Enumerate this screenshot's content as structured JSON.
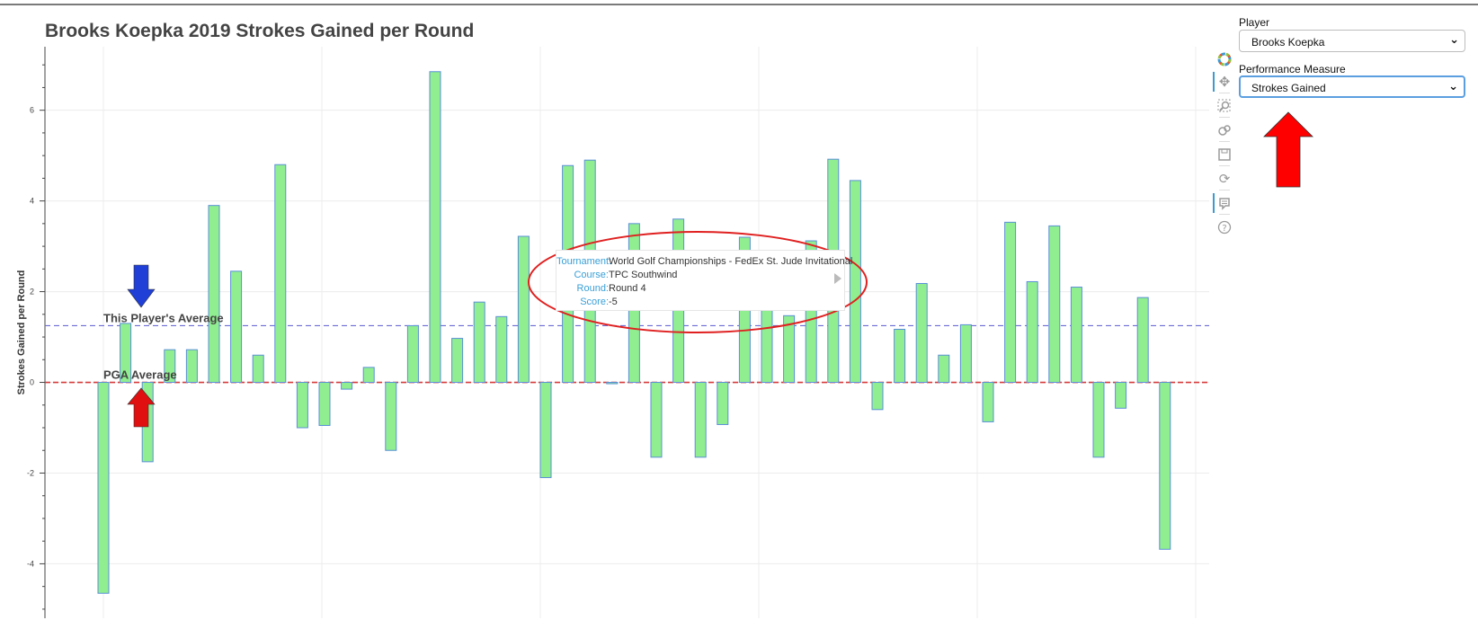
{
  "chart_data": {
    "type": "bar",
    "title": "Brooks Koepka 2019 Strokes Gained per Round",
    "ylabel": "Strokes Gained per Round",
    "xlabel": "",
    "ylim": [
      -5.2,
      7.4
    ],
    "yticks": [
      6,
      4,
      2,
      0,
      -2,
      -4
    ],
    "grid": true,
    "bar_fill": "#90ee90",
    "bar_stroke": "#5b8fd9",
    "values": [
      -4.65,
      1.3,
      -1.75,
      0.72,
      0.72,
      3.9,
      2.45,
      0.6,
      4.8,
      -1.0,
      -0.95,
      -0.15,
      0.33,
      -1.5,
      1.25,
      6.85,
      0.97,
      1.77,
      1.45,
      3.22,
      -2.1,
      4.78,
      4.9,
      -0.03,
      3.5,
      -1.65,
      3.6,
      -1.65,
      -0.93,
      3.2,
      2.2,
      1.47,
      3.12,
      4.92,
      4.45,
      -0.6,
      1.17,
      2.18,
      0.6,
      1.27,
      -0.87,
      3.53,
      2.22,
      3.45,
      2.1,
      -1.65,
      -0.57,
      1.87,
      -3.68
    ],
    "annotations": {
      "player_average": {
        "label": "This Player's Average",
        "value": 1.25,
        "color": "#6b6bd6",
        "arrow_color": "#1f3fd6"
      },
      "pga_average": {
        "label": "PGA Average",
        "value": 0,
        "color": "#d63a3a",
        "arrow_color": "#e01010"
      }
    }
  },
  "tooltip": {
    "tournament_key": "Tournament:",
    "tournament": "World Golf Championships - FedEx St. Jude Invitational",
    "course_key": "Course:",
    "course": "TPC Southwind",
    "round_key": "Round:",
    "round": "Round 4",
    "score_key": "Score:",
    "score": "-5",
    "highlight_color": "#e02020"
  },
  "toolbar": {
    "tools": [
      "bokeh-logo-icon",
      "pan-icon",
      "box-zoom-icon",
      "wheel-zoom-icon",
      "save-icon",
      "reset-icon",
      "hover-icon",
      "help-icon"
    ]
  },
  "widgets": {
    "player_label": "Player",
    "player_value": "Brooks Koepka",
    "measure_label": "Performance Measure",
    "measure_value": "Strokes Gained",
    "callout_arrow_color": "#ff0000"
  }
}
